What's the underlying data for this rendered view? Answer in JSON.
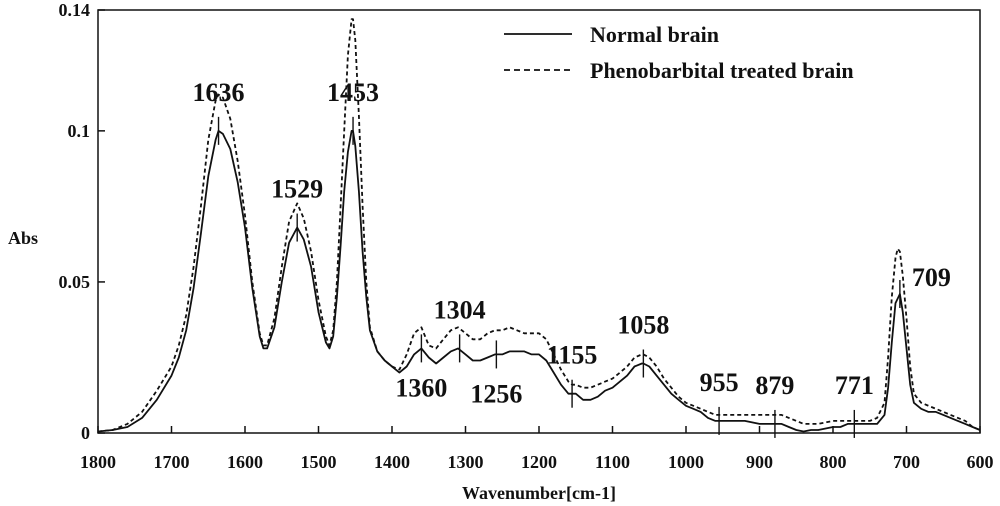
{
  "chart_data": {
    "type": "line",
    "xlabel": "Wavenumber[cm-1]",
    "ylabel": "Abs",
    "xlim": [
      1800,
      600
    ],
    "ylim": [
      0,
      0.14
    ],
    "x_axis_reversed": true,
    "x_ticks": [
      {
        "value": 1800,
        "label": "1800"
      },
      {
        "value": 1700,
        "label": "1700"
      },
      {
        "value": 1600,
        "label": "1600"
      },
      {
        "value": 1500,
        "label": "1500"
      },
      {
        "value": 1400,
        "label": "1400"
      },
      {
        "value": 1300,
        "label": "1300"
      },
      {
        "value": 1200,
        "label": "1200"
      },
      {
        "value": 1100,
        "label": "1100"
      },
      {
        "value": 1000,
        "label": "1000"
      },
      {
        "value": 900,
        "label": "900"
      },
      {
        "value": 800,
        "label": "800"
      },
      {
        "value": 700,
        "label": "700"
      },
      {
        "value": 600,
        "label": "600"
      }
    ],
    "y_ticks": [
      {
        "value": 0,
        "label": "0"
      },
      {
        "value": 0.05,
        "label": "0.05"
      },
      {
        "value": 0.1,
        "label": "0.1"
      },
      {
        "value": 0.14,
        "label": "0.14"
      }
    ],
    "grid": false,
    "legend_position": "top-right",
    "series": [
      {
        "name": "Normal brain",
        "style": "solid",
        "color": "#111111",
        "points": [
          [
            1800,
            0.0005
          ],
          [
            1780,
            0.001
          ],
          [
            1760,
            0.002
          ],
          [
            1740,
            0.005
          ],
          [
            1720,
            0.011
          ],
          [
            1700,
            0.019
          ],
          [
            1690,
            0.025
          ],
          [
            1680,
            0.034
          ],
          [
            1670,
            0.048
          ],
          [
            1660,
            0.066
          ],
          [
            1650,
            0.085
          ],
          [
            1640,
            0.097
          ],
          [
            1636,
            0.1
          ],
          [
            1630,
            0.099
          ],
          [
            1620,
            0.094
          ],
          [
            1610,
            0.083
          ],
          [
            1600,
            0.068
          ],
          [
            1590,
            0.048
          ],
          [
            1580,
            0.032
          ],
          [
            1575,
            0.028
          ],
          [
            1570,
            0.028
          ],
          [
            1560,
            0.035
          ],
          [
            1550,
            0.05
          ],
          [
            1540,
            0.063
          ],
          [
            1529,
            0.068
          ],
          [
            1520,
            0.064
          ],
          [
            1510,
            0.055
          ],
          [
            1500,
            0.04
          ],
          [
            1490,
            0.03
          ],
          [
            1485,
            0.028
          ],
          [
            1480,
            0.032
          ],
          [
            1475,
            0.045
          ],
          [
            1470,
            0.062
          ],
          [
            1465,
            0.08
          ],
          [
            1460,
            0.093
          ],
          [
            1455,
            0.1
          ],
          [
            1453,
            0.1
          ],
          [
            1450,
            0.095
          ],
          [
            1445,
            0.08
          ],
          [
            1440,
            0.06
          ],
          [
            1435,
            0.045
          ],
          [
            1430,
            0.034
          ],
          [
            1420,
            0.027
          ],
          [
            1410,
            0.024
          ],
          [
            1400,
            0.022
          ],
          [
            1390,
            0.02
          ],
          [
            1380,
            0.022
          ],
          [
            1370,
            0.026
          ],
          [
            1360,
            0.028
          ],
          [
            1350,
            0.025
          ],
          [
            1340,
            0.023
          ],
          [
            1330,
            0.025
          ],
          [
            1320,
            0.027
          ],
          [
            1310,
            0.028
          ],
          [
            1300,
            0.026
          ],
          [
            1290,
            0.024
          ],
          [
            1280,
            0.024
          ],
          [
            1270,
            0.025
          ],
          [
            1260,
            0.026
          ],
          [
            1250,
            0.026
          ],
          [
            1240,
            0.027
          ],
          [
            1230,
            0.027
          ],
          [
            1220,
            0.027
          ],
          [
            1210,
            0.026
          ],
          [
            1200,
            0.026
          ],
          [
            1190,
            0.024
          ],
          [
            1180,
            0.02
          ],
          [
            1170,
            0.016
          ],
          [
            1160,
            0.013
          ],
          [
            1155,
            0.013
          ],
          [
            1150,
            0.013
          ],
          [
            1140,
            0.011
          ],
          [
            1130,
            0.011
          ],
          [
            1120,
            0.012
          ],
          [
            1110,
            0.014
          ],
          [
            1100,
            0.015
          ],
          [
            1090,
            0.017
          ],
          [
            1080,
            0.019
          ],
          [
            1070,
            0.022
          ],
          [
            1060,
            0.023
          ],
          [
            1058,
            0.023
          ],
          [
            1050,
            0.022
          ],
          [
            1040,
            0.019
          ],
          [
            1030,
            0.016
          ],
          [
            1020,
            0.013
          ],
          [
            1010,
            0.011
          ],
          [
            1000,
            0.009
          ],
          [
            990,
            0.008
          ],
          [
            980,
            0.007
          ],
          [
            970,
            0.005
          ],
          [
            960,
            0.004
          ],
          [
            955,
            0.004
          ],
          [
            940,
            0.004
          ],
          [
            920,
            0.004
          ],
          [
            900,
            0.003
          ],
          [
            880,
            0.003
          ],
          [
            870,
            0.003
          ],
          [
            860,
            0.002
          ],
          [
            850,
            0.001
          ],
          [
            840,
            0.0005
          ],
          [
            830,
            0.001
          ],
          [
            820,
            0.001
          ],
          [
            800,
            0.002
          ],
          [
            790,
            0.002
          ],
          [
            780,
            0.003
          ],
          [
            771,
            0.003
          ],
          [
            760,
            0.003
          ],
          [
            750,
            0.003
          ],
          [
            740,
            0.003
          ],
          [
            730,
            0.006
          ],
          [
            725,
            0.015
          ],
          [
            720,
            0.03
          ],
          [
            715,
            0.043
          ],
          [
            709,
            0.046
          ],
          [
            705,
            0.04
          ],
          [
            700,
            0.028
          ],
          [
            695,
            0.016
          ],
          [
            690,
            0.01
          ],
          [
            680,
            0.008
          ],
          [
            670,
            0.007
          ],
          [
            660,
            0.007
          ],
          [
            650,
            0.006
          ],
          [
            640,
            0.005
          ],
          [
            630,
            0.004
          ],
          [
            620,
            0.003
          ],
          [
            610,
            0.002
          ],
          [
            600,
            0.001
          ]
        ]
      },
      {
        "name": "Phenobarbital treated brain",
        "style": "dashed",
        "color": "#111111",
        "points": [
          [
            1800,
            0.0005
          ],
          [
            1780,
            0.001
          ],
          [
            1760,
            0.003
          ],
          [
            1740,
            0.007
          ],
          [
            1720,
            0.014
          ],
          [
            1700,
            0.022
          ],
          [
            1690,
            0.029
          ],
          [
            1680,
            0.039
          ],
          [
            1670,
            0.055
          ],
          [
            1660,
            0.075
          ],
          [
            1650,
            0.097
          ],
          [
            1640,
            0.11
          ],
          [
            1636,
            0.112
          ],
          [
            1630,
            0.111
          ],
          [
            1620,
            0.104
          ],
          [
            1610,
            0.09
          ],
          [
            1600,
            0.072
          ],
          [
            1590,
            0.05
          ],
          [
            1580,
            0.033
          ],
          [
            1575,
            0.029
          ],
          [
            1570,
            0.029
          ],
          [
            1560,
            0.038
          ],
          [
            1550,
            0.055
          ],
          [
            1540,
            0.07
          ],
          [
            1529,
            0.076
          ],
          [
            1520,
            0.071
          ],
          [
            1510,
            0.06
          ],
          [
            1500,
            0.044
          ],
          [
            1490,
            0.032
          ],
          [
            1485,
            0.029
          ],
          [
            1480,
            0.034
          ],
          [
            1475,
            0.05
          ],
          [
            1470,
            0.075
          ],
          [
            1465,
            0.1
          ],
          [
            1460,
            0.125
          ],
          [
            1455,
            0.137
          ],
          [
            1453,
            0.137
          ],
          [
            1450,
            0.13
          ],
          [
            1445,
            0.105
          ],
          [
            1440,
            0.075
          ],
          [
            1435,
            0.05
          ],
          [
            1430,
            0.035
          ],
          [
            1420,
            0.027
          ],
          [
            1410,
            0.024
          ],
          [
            1400,
            0.022
          ],
          [
            1390,
            0.021
          ],
          [
            1380,
            0.026
          ],
          [
            1370,
            0.033
          ],
          [
            1360,
            0.035
          ],
          [
            1350,
            0.029
          ],
          [
            1340,
            0.028
          ],
          [
            1330,
            0.031
          ],
          [
            1320,
            0.034
          ],
          [
            1310,
            0.035
          ],
          [
            1300,
            0.033
          ],
          [
            1290,
            0.031
          ],
          [
            1280,
            0.031
          ],
          [
            1270,
            0.033
          ],
          [
            1260,
            0.034
          ],
          [
            1250,
            0.034
          ],
          [
            1240,
            0.035
          ],
          [
            1230,
            0.034
          ],
          [
            1220,
            0.033
          ],
          [
            1210,
            0.033
          ],
          [
            1200,
            0.033
          ],
          [
            1190,
            0.031
          ],
          [
            1180,
            0.026
          ],
          [
            1170,
            0.021
          ],
          [
            1160,
            0.017
          ],
          [
            1155,
            0.016
          ],
          [
            1150,
            0.016
          ],
          [
            1140,
            0.015
          ],
          [
            1130,
            0.015
          ],
          [
            1120,
            0.016
          ],
          [
            1110,
            0.017
          ],
          [
            1100,
            0.018
          ],
          [
            1090,
            0.02
          ],
          [
            1080,
            0.022
          ],
          [
            1070,
            0.025
          ],
          [
            1060,
            0.026
          ],
          [
            1058,
            0.026
          ],
          [
            1050,
            0.025
          ],
          [
            1040,
            0.022
          ],
          [
            1030,
            0.018
          ],
          [
            1020,
            0.015
          ],
          [
            1010,
            0.012
          ],
          [
            1000,
            0.01
          ],
          [
            990,
            0.009
          ],
          [
            980,
            0.008
          ],
          [
            970,
            0.007
          ],
          [
            960,
            0.006
          ],
          [
            955,
            0.006
          ],
          [
            940,
            0.006
          ],
          [
            920,
            0.006
          ],
          [
            900,
            0.006
          ],
          [
            880,
            0.006
          ],
          [
            870,
            0.006
          ],
          [
            860,
            0.005
          ],
          [
            850,
            0.004
          ],
          [
            840,
            0.003
          ],
          [
            830,
            0.003
          ],
          [
            820,
            0.003
          ],
          [
            800,
            0.004
          ],
          [
            790,
            0.004
          ],
          [
            780,
            0.004
          ],
          [
            771,
            0.004
          ],
          [
            760,
            0.004
          ],
          [
            750,
            0.004
          ],
          [
            740,
            0.005
          ],
          [
            730,
            0.01
          ],
          [
            725,
            0.025
          ],
          [
            720,
            0.045
          ],
          [
            715,
            0.058
          ],
          [
            712,
            0.061
          ],
          [
            709,
            0.06
          ],
          [
            705,
            0.052
          ],
          [
            700,
            0.038
          ],
          [
            695,
            0.022
          ],
          [
            690,
            0.013
          ],
          [
            680,
            0.01
          ],
          [
            670,
            0.009
          ],
          [
            660,
            0.008
          ],
          [
            650,
            0.007
          ],
          [
            640,
            0.006
          ],
          [
            630,
            0.005
          ],
          [
            620,
            0.004
          ],
          [
            610,
            0.002
          ],
          [
            600,
            0.001
          ]
        ]
      }
    ],
    "peak_markers": [
      {
        "label": "1636",
        "x": 1636,
        "y": 0.1,
        "label_side": "above"
      },
      {
        "label": "1529",
        "x": 1529,
        "y": 0.068,
        "label_side": "above"
      },
      {
        "label": "1453",
        "x": 1453,
        "y": 0.1,
        "label_side": "above"
      },
      {
        "label": "1360",
        "x": 1360,
        "y": 0.028,
        "label_side": "below"
      },
      {
        "label": "1304",
        "x": 1308,
        "y": 0.028,
        "label_side": "above"
      },
      {
        "label": "1256",
        "x": 1258,
        "y": 0.026,
        "label_side": "below"
      },
      {
        "label": "1155",
        "x": 1155,
        "y": 0.013,
        "label_side": "above"
      },
      {
        "label": "1058",
        "x": 1058,
        "y": 0.023,
        "label_side": "above"
      },
      {
        "label": "955",
        "x": 955,
        "y": 0.004,
        "label_side": "above"
      },
      {
        "label": "879",
        "x": 879,
        "y": 0.003,
        "label_side": "above"
      },
      {
        "label": "771",
        "x": 771,
        "y": 0.003,
        "label_side": "above"
      },
      {
        "label": "709",
        "x": 709,
        "y": 0.046,
        "label_side": "right"
      }
    ]
  }
}
